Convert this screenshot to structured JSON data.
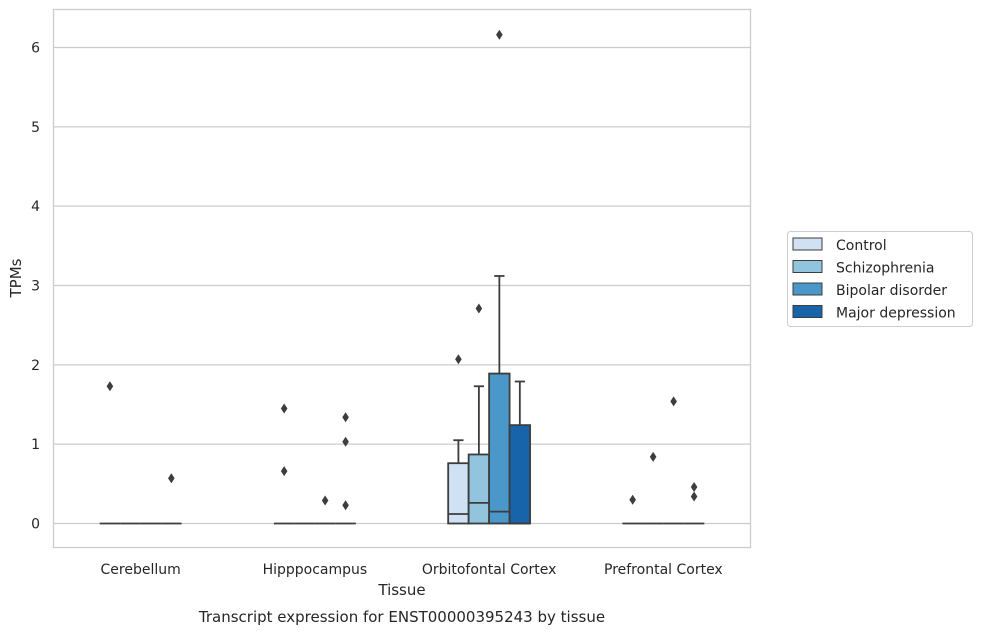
{
  "chart_data": {
    "type": "box",
    "xlabel": "Tissue",
    "ylabel": "TPMs",
    "caption": "Transcript expression for ENST00000395243 by tissue",
    "categories": [
      "Cerebellum",
      "Hipppocampus",
      "Orbitofontal Cortex",
      "Prefrontal Cortex"
    ],
    "ylim": [
      -0.3,
      6.5
    ],
    "yticks": [
      0,
      1,
      2,
      3,
      4,
      5,
      6
    ],
    "grid": true,
    "legend_position": "right",
    "series": [
      {
        "name": "Control",
        "color": "#cfe1f2",
        "boxes": [
          {
            "q1": 0,
            "median": 0,
            "q3": 0,
            "whisker_low": 0,
            "whisker_high": 0,
            "outliers": [
              1.73
            ]
          },
          {
            "q1": 0,
            "median": 0,
            "q3": 0,
            "whisker_low": 0,
            "whisker_high": 0,
            "outliers": [
              1.45,
              0.66
            ]
          },
          {
            "q1": 0,
            "median": 0.12,
            "q3": 0.76,
            "whisker_low": 0,
            "whisker_high": 1.05,
            "outliers": [
              2.07
            ]
          },
          {
            "q1": 0,
            "median": 0,
            "q3": 0,
            "whisker_low": 0,
            "whisker_high": 0,
            "outliers": [
              0.3
            ]
          }
        ]
      },
      {
        "name": "Schizophrenia",
        "color": "#93c4de",
        "boxes": [
          {
            "q1": 0,
            "median": 0,
            "q3": 0,
            "whisker_low": 0,
            "whisker_high": 0,
            "outliers": []
          },
          {
            "q1": 0,
            "median": 0,
            "q3": 0,
            "whisker_low": 0,
            "whisker_high": 0,
            "outliers": []
          },
          {
            "q1": 0,
            "median": 0.26,
            "q3": 0.87,
            "whisker_low": 0,
            "whisker_high": 1.73,
            "outliers": [
              2.71
            ]
          },
          {
            "q1": 0,
            "median": 0,
            "q3": 0,
            "whisker_low": 0,
            "whisker_high": 0,
            "outliers": [
              0.84
            ]
          }
        ]
      },
      {
        "name": "Bipolar disorder",
        "color": "#4a98c9",
        "boxes": [
          {
            "q1": 0,
            "median": 0,
            "q3": 0,
            "whisker_low": 0,
            "whisker_high": 0,
            "outliers": []
          },
          {
            "q1": 0,
            "median": 0,
            "q3": 0,
            "whisker_low": 0,
            "whisker_high": 0,
            "outliers": [
              0.29
            ]
          },
          {
            "q1": 0,
            "median": 0.15,
            "q3": 1.89,
            "whisker_low": 0,
            "whisker_high": 3.12,
            "outliers": [
              6.16
            ]
          },
          {
            "q1": 0,
            "median": 0,
            "q3": 0,
            "whisker_low": 0,
            "whisker_high": 0,
            "outliers": [
              1.54
            ]
          }
        ]
      },
      {
        "name": "Major depression",
        "color": "#1764ab",
        "boxes": [
          {
            "q1": 0,
            "median": 0,
            "q3": 0,
            "whisker_low": 0,
            "whisker_high": 0,
            "outliers": [
              0.57
            ]
          },
          {
            "q1": 0,
            "median": 0,
            "q3": 0,
            "whisker_low": 0,
            "whisker_high": 0,
            "outliers": [
              1.34,
              1.03,
              0.23
            ]
          },
          {
            "q1": 0,
            "median": 0,
            "q3": 1.24,
            "whisker_low": 0,
            "whisker_high": 1.79,
            "outliers": []
          },
          {
            "q1": 0,
            "median": 0,
            "q3": 0,
            "whisker_low": 0,
            "whisker_high": 0,
            "outliers": [
              0.46,
              0.34
            ]
          }
        ]
      }
    ]
  }
}
